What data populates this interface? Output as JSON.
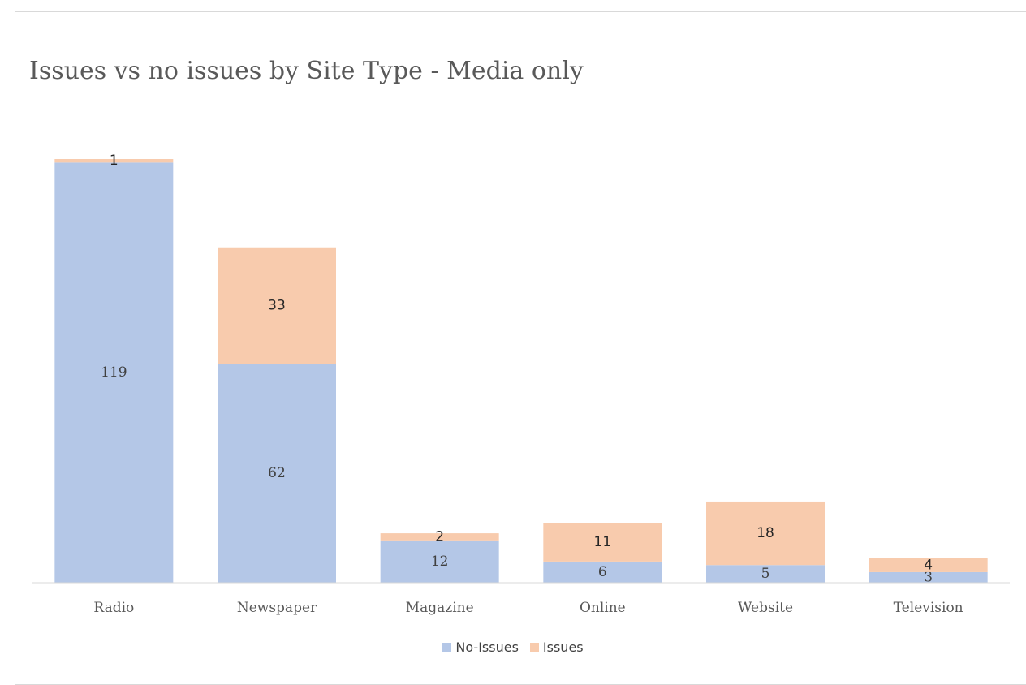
{
  "chart_data": {
    "type": "bar",
    "stacked": true,
    "title": "Issues vs no issues by Site Type - Media only",
    "categories": [
      "Radio",
      "Newspaper",
      "Magazine",
      "Online",
      "Website",
      "Television"
    ],
    "series": [
      {
        "name": "No-Issues",
        "color": "#b4c7e7",
        "values": [
          119,
          62,
          12,
          6,
          5,
          3
        ]
      },
      {
        "name": "Issues",
        "color": "#f8cbad",
        "values": [
          1,
          33,
          2,
          11,
          18,
          4
        ]
      }
    ],
    "data_labels": true,
    "legend_position": "bottom",
    "grid": false,
    "ylim": [
      0,
      120
    ]
  }
}
